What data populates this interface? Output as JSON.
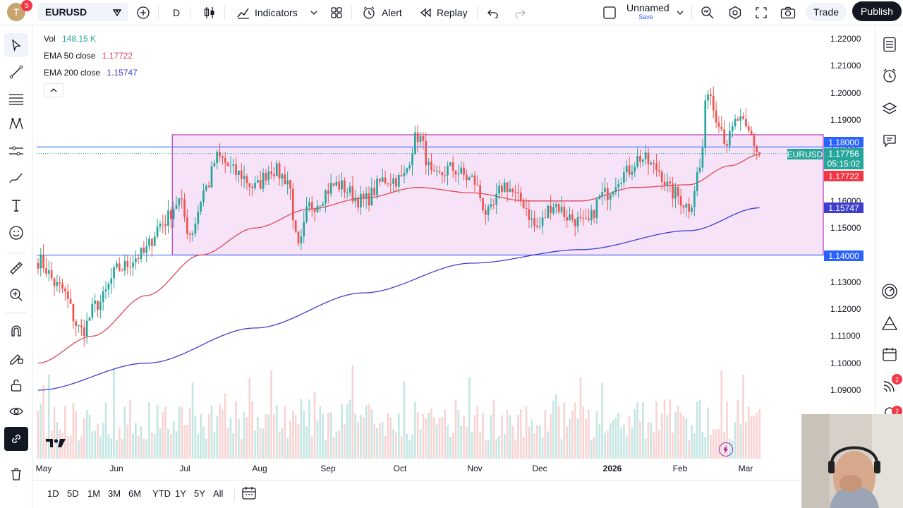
{
  "header": {
    "avatar_letter": "T",
    "avatar_badge": "5",
    "symbol": "EURUSD",
    "interval": "D",
    "indicators_label": "Indicators",
    "alert_label": "Alert",
    "replay_label": "Replay",
    "layout_name": "Unnamed",
    "layout_save": "Save",
    "trade_label": "Trade",
    "publish_label": "Publish"
  },
  "legend": {
    "vol_label": "Vol",
    "vol_value": "148.15 K",
    "ema50_label": "EMA 50 close",
    "ema50_value": "1.17722",
    "ema200_label": "EMA 200 close",
    "ema200_value": "1.15747"
  },
  "price_labels": {
    "level_top": "1.18000",
    "symbol_tag": "EURUSD",
    "last_price": "1.17756",
    "countdown": "05:15:02",
    "ema50": "1.17722",
    "ema200": "1.15747",
    "level_bottom": "1.14000"
  },
  "right_badges": {
    "alerts": "2",
    "notifications": "2"
  },
  "ranges": [
    "1D",
    "5D",
    "1M",
    "3M",
    "6M",
    "YTD",
    "1Y",
    "5Y",
    "All"
  ],
  "colors": {
    "up": "#26a69a",
    "down": "#ef5350",
    "ema50": "#e0475a",
    "ema200": "#3f3fcf",
    "rect_fill": "#f7e3f7",
    "rect_border": "#b03ab0",
    "hline": "#2962ff",
    "dark": "#131722"
  },
  "chart_data": {
    "type": "candlestick",
    "symbol": "EURUSD",
    "interval": "D",
    "y_ticks": [
      "1.22000",
      "1.21000",
      "1.20000",
      "1.19000",
      "1.18000",
      "1.17000",
      "1.16000",
      "1.15000",
      "1.14000",
      "1.13000",
      "1.12000",
      "1.11000",
      "1.10000",
      "1.09000"
    ],
    "x_ticks": [
      "May",
      "Jun",
      "Jul",
      "Aug",
      "Sep",
      "Oct",
      "Nov",
      "Dec",
      "2026",
      "Feb",
      "Mar"
    ],
    "ylim": [
      1.085,
      1.222
    ],
    "close_anchors": [
      [
        0,
        1.138
      ],
      [
        8,
        1.128
      ],
      [
        16,
        1.112
      ],
      [
        22,
        1.122
      ],
      [
        30,
        1.135
      ],
      [
        38,
        1.14
      ],
      [
        46,
        1.152
      ],
      [
        52,
        1.16
      ],
      [
        56,
        1.148
      ],
      [
        62,
        1.165
      ],
      [
        66,
        1.176
      ],
      [
        74,
        1.17
      ],
      [
        80,
        1.165
      ],
      [
        86,
        1.172
      ],
      [
        92,
        1.168
      ],
      [
        96,
        1.142
      ],
      [
        100,
        1.158
      ],
      [
        110,
        1.166
      ],
      [
        120,
        1.16
      ],
      [
        128,
        1.168
      ],
      [
        134,
        1.168
      ],
      [
        140,
        1.184
      ],
      [
        146,
        1.168
      ],
      [
        152,
        1.172
      ],
      [
        160,
        1.168
      ],
      [
        166,
        1.155
      ],
      [
        172,
        1.166
      ],
      [
        178,
        1.16
      ],
      [
        184,
        1.15
      ],
      [
        190,
        1.159
      ],
      [
        196,
        1.154
      ],
      [
        202,
        1.151
      ],
      [
        208,
        1.162
      ],
      [
        216,
        1.17
      ],
      [
        222,
        1.176
      ],
      [
        228,
        1.172
      ],
      [
        234,
        1.163
      ],
      [
        240,
        1.158
      ],
      [
        244,
        1.172
      ],
      [
        247,
        1.202
      ],
      [
        250,
        1.192
      ],
      [
        254,
        1.182
      ],
      [
        258,
        1.19
      ],
      [
        262,
        1.185
      ],
      [
        266,
        1.1776
      ]
    ],
    "ema50_anchors": [
      [
        0,
        1.1
      ],
      [
        20,
        1.11
      ],
      [
        40,
        1.125
      ],
      [
        60,
        1.14
      ],
      [
        80,
        1.15
      ],
      [
        100,
        1.157
      ],
      [
        120,
        1.161
      ],
      [
        140,
        1.165
      ],
      [
        160,
        1.163
      ],
      [
        180,
        1.16
      ],
      [
        200,
        1.16
      ],
      [
        220,
        1.165
      ],
      [
        240,
        1.166
      ],
      [
        255,
        1.173
      ],
      [
        266,
        1.17722
      ]
    ],
    "ema200_anchors": [
      [
        0,
        1.09
      ],
      [
        40,
        1.1
      ],
      [
        80,
        1.113
      ],
      [
        120,
        1.126
      ],
      [
        160,
        1.137
      ],
      [
        200,
        1.142
      ],
      [
        240,
        1.149
      ],
      [
        266,
        1.15747
      ]
    ],
    "drawings": {
      "rectangle": {
        "x_from": 50,
        "x_to": 290,
        "y_top": 1.1845,
        "y_bottom": 1.14
      },
      "hlines": [
        1.18,
        1.14
      ]
    },
    "volume_visible": true
  }
}
